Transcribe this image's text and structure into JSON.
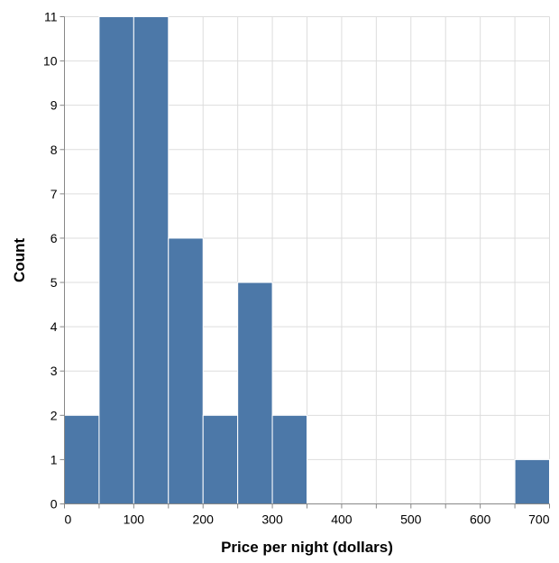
{
  "chart_data": {
    "type": "bar",
    "subtype": "histogram",
    "xlabel": "Price per night (dollars)",
    "ylabel": "Count",
    "bin_width": 50,
    "bins": [
      {
        "x0": 0,
        "x1": 50,
        "count": 2
      },
      {
        "x0": 50,
        "x1": 100,
        "count": 11
      },
      {
        "x0": 100,
        "x1": 150,
        "count": 11
      },
      {
        "x0": 150,
        "x1": 200,
        "count": 6
      },
      {
        "x0": 200,
        "x1": 250,
        "count": 2
      },
      {
        "x0": 250,
        "x1": 300,
        "count": 5
      },
      {
        "x0": 300,
        "x1": 350,
        "count": 2
      },
      {
        "x0": 650,
        "x1": 700,
        "count": 1
      }
    ],
    "xlim": [
      0,
      700
    ],
    "ylim": [
      0,
      11
    ],
    "x_ticks": [
      0,
      100,
      200,
      300,
      400,
      500,
      600,
      700
    ],
    "y_ticks": [
      0,
      1,
      2,
      3,
      4,
      5,
      6,
      7,
      8,
      9,
      10,
      11
    ],
    "grid": true,
    "legend": "none",
    "bar_color": "#4c78a8",
    "grid_color": "#dddddd",
    "axis_color": "#888888"
  }
}
